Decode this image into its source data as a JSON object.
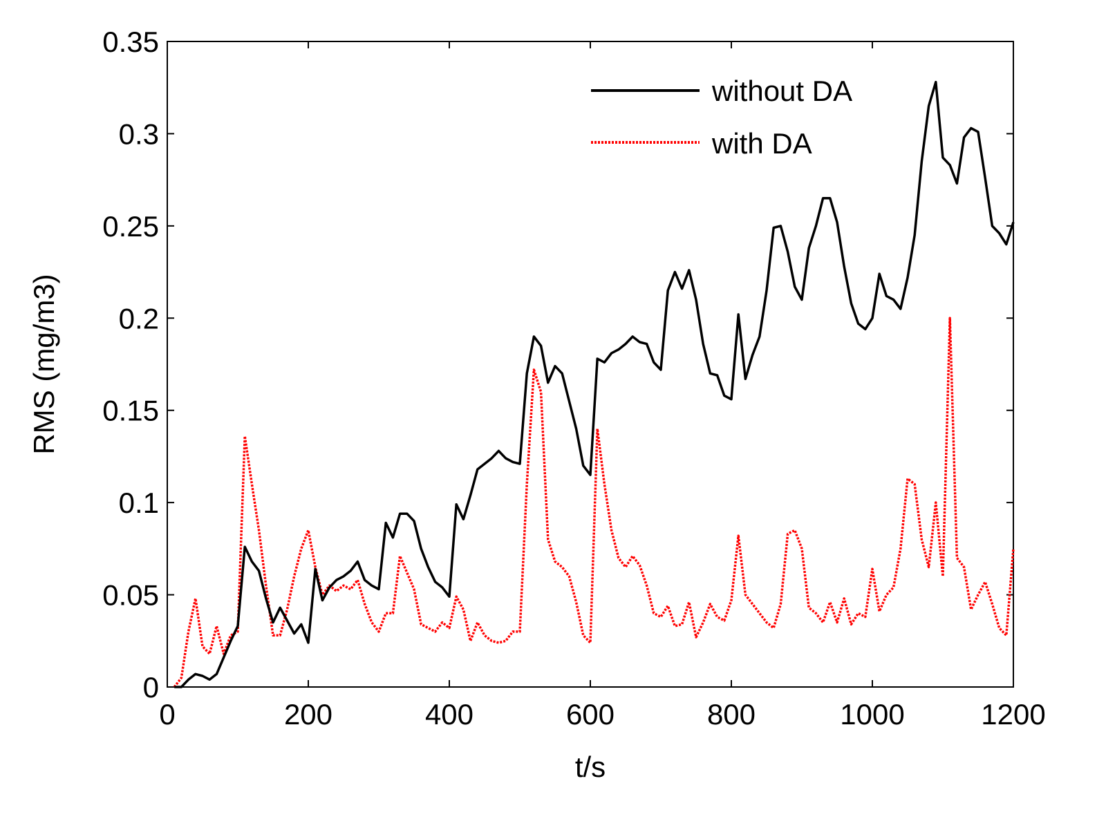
{
  "chart_data": {
    "type": "line",
    "xlabel": "t/s",
    "ylabel": "RMS (mg/m3)",
    "xlim": [
      0,
      1200
    ],
    "ylim": [
      0,
      0.35
    ],
    "xticks": [
      0,
      200,
      400,
      600,
      800,
      1000,
      1200
    ],
    "xtick_labels": [
      "0",
      "200",
      "400",
      "600",
      "800",
      "1000",
      "1200"
    ],
    "yticks": [
      0,
      0.05,
      0.1,
      0.15,
      0.2,
      0.25,
      0.3,
      0.35
    ],
    "ytick_labels": [
      "0",
      "0.05",
      "0.1",
      "0.15",
      "0.2",
      "0.25",
      "0.3",
      "0.35"
    ],
    "grid": false,
    "legend_position": "top-right",
    "series": [
      {
        "name": "without DA",
        "color": "#000000",
        "style": "solid",
        "x": [
          10,
          20,
          30,
          40,
          50,
          60,
          70,
          80,
          90,
          100,
          110,
          120,
          130,
          140,
          150,
          160,
          170,
          180,
          190,
          200,
          210,
          220,
          230,
          240,
          250,
          260,
          270,
          280,
          290,
          300,
          310,
          320,
          330,
          340,
          350,
          360,
          370,
          380,
          390,
          400,
          410,
          420,
          430,
          440,
          450,
          460,
          470,
          480,
          490,
          500,
          510,
          520,
          530,
          540,
          550,
          560,
          570,
          580,
          590,
          600,
          610,
          620,
          630,
          640,
          650,
          660,
          670,
          680,
          690,
          700,
          710,
          720,
          730,
          740,
          750,
          760,
          770,
          780,
          790,
          800,
          810,
          820,
          830,
          840,
          850,
          860,
          870,
          880,
          890,
          900,
          910,
          920,
          930,
          940,
          950,
          960,
          970,
          980,
          990,
          1000,
          1010,
          1020,
          1030,
          1040,
          1050,
          1060,
          1070,
          1080,
          1090,
          1100,
          1110,
          1120,
          1130,
          1140,
          1150,
          1160,
          1170,
          1180,
          1190,
          1200
        ],
        "values": [
          0.0,
          0.0,
          0.004,
          0.007,
          0.006,
          0.004,
          0.007,
          0.016,
          0.025,
          0.033,
          0.076,
          0.068,
          0.063,
          0.048,
          0.035,
          0.043,
          0.036,
          0.029,
          0.034,
          0.024,
          0.064,
          0.047,
          0.054,
          0.058,
          0.06,
          0.063,
          0.068,
          0.058,
          0.055,
          0.053,
          0.089,
          0.081,
          0.094,
          0.094,
          0.09,
          0.075,
          0.065,
          0.057,
          0.054,
          0.049,
          0.099,
          0.091,
          0.104,
          0.118,
          0.121,
          0.124,
          0.128,
          0.124,
          0.122,
          0.121,
          0.17,
          0.19,
          0.185,
          0.165,
          0.174,
          0.17,
          0.155,
          0.14,
          0.12,
          0.115,
          0.178,
          0.176,
          0.181,
          0.183,
          0.186,
          0.19,
          0.187,
          0.186,
          0.176,
          0.172,
          0.215,
          0.225,
          0.216,
          0.226,
          0.21,
          0.186,
          0.17,
          0.169,
          0.158,
          0.156,
          0.202,
          0.167,
          0.18,
          0.19,
          0.215,
          0.249,
          0.25,
          0.236,
          0.217,
          0.21,
          0.238,
          0.25,
          0.265,
          0.265,
          0.252,
          0.228,
          0.208,
          0.197,
          0.194,
          0.2,
          0.224,
          0.212,
          0.21,
          0.205,
          0.222,
          0.245,
          0.285,
          0.315,
          0.328,
          0.287,
          0.283,
          0.273,
          0.298,
          0.303,
          0.301,
          0.276,
          0.25,
          0.246,
          0.24,
          0.252
        ]
      },
      {
        "name": "with DA",
        "color": "#ff0000",
        "style": "dotted",
        "x": [
          10,
          20,
          30,
          40,
          50,
          60,
          70,
          80,
          90,
          100,
          110,
          120,
          130,
          140,
          150,
          160,
          170,
          180,
          190,
          200,
          210,
          220,
          230,
          240,
          250,
          260,
          270,
          280,
          290,
          300,
          310,
          320,
          330,
          340,
          350,
          360,
          370,
          380,
          390,
          400,
          410,
          420,
          430,
          440,
          450,
          460,
          470,
          480,
          490,
          500,
          510,
          520,
          530,
          540,
          550,
          560,
          570,
          580,
          590,
          600,
          610,
          620,
          630,
          640,
          650,
          660,
          670,
          680,
          690,
          700,
          710,
          720,
          730,
          740,
          750,
          760,
          770,
          780,
          790,
          800,
          810,
          820,
          830,
          840,
          850,
          860,
          870,
          880,
          890,
          900,
          910,
          920,
          930,
          940,
          950,
          960,
          970,
          980,
          990,
          1000,
          1010,
          1020,
          1030,
          1040,
          1050,
          1060,
          1070,
          1080,
          1090,
          1100,
          1110,
          1120,
          1130,
          1140,
          1150,
          1160,
          1170,
          1180,
          1190,
          1200
        ],
        "values": [
          0.0,
          0.005,
          0.03,
          0.048,
          0.022,
          0.018,
          0.033,
          0.018,
          0.028,
          0.03,
          0.136,
          0.11,
          0.085,
          0.055,
          0.028,
          0.028,
          0.042,
          0.06,
          0.075,
          0.085,
          0.065,
          0.05,
          0.055,
          0.052,
          0.055,
          0.053,
          0.058,
          0.045,
          0.035,
          0.03,
          0.04,
          0.04,
          0.071,
          0.062,
          0.053,
          0.034,
          0.032,
          0.03,
          0.035,
          0.032,
          0.049,
          0.042,
          0.025,
          0.035,
          0.028,
          0.025,
          0.024,
          0.025,
          0.03,
          0.03,
          0.11,
          0.172,
          0.16,
          0.08,
          0.068,
          0.065,
          0.06,
          0.046,
          0.028,
          0.024,
          0.14,
          0.11,
          0.085,
          0.07,
          0.065,
          0.071,
          0.066,
          0.055,
          0.04,
          0.038,
          0.044,
          0.033,
          0.034,
          0.046,
          0.027,
          0.035,
          0.045,
          0.038,
          0.036,
          0.047,
          0.082,
          0.05,
          0.045,
          0.04,
          0.035,
          0.032,
          0.045,
          0.083,
          0.085,
          0.075,
          0.043,
          0.04,
          0.035,
          0.046,
          0.035,
          0.048,
          0.034,
          0.04,
          0.038,
          0.064,
          0.041,
          0.05,
          0.054,
          0.075,
          0.113,
          0.11,
          0.08,
          0.065,
          0.1,
          0.06,
          0.2,
          0.07,
          0.065,
          0.042,
          0.05,
          0.057,
          0.045,
          0.032,
          0.028,
          0.075
        ]
      }
    ]
  }
}
